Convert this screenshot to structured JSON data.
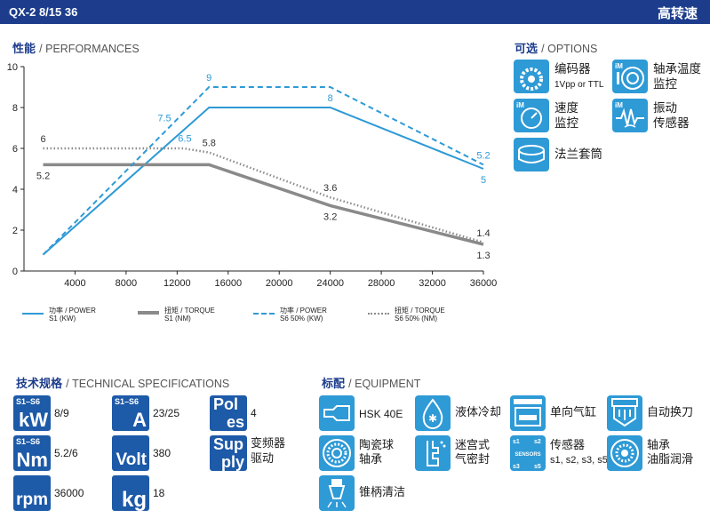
{
  "header": {
    "model": "QX-2 8/15 36",
    "title": "高转速"
  },
  "performances": {
    "title_cn": "性能",
    "title_en": "/ PERFORMANCES"
  },
  "options": {
    "title_cn": "可选",
    "title_en": "/ OPTIONS",
    "items": [
      {
        "icon": "encoder-icon",
        "label1": "编码器",
        "label2": "1Vpp or TTL"
      },
      {
        "icon": "bearing-temperature-icon",
        "label1": "轴承温度",
        "label2": "监控"
      },
      {
        "icon": "speed-monitor-icon",
        "label1": "速度",
        "label2": "监控"
      },
      {
        "icon": "vibration-sensor-icon",
        "label1": "振动",
        "label2": "传感器"
      },
      {
        "icon": "flange-sleeve-icon",
        "label1": "法兰套筒",
        "label2": ""
      }
    ]
  },
  "chart_data": {
    "type": "line",
    "title": "",
    "xlabel": "",
    "ylabel": "",
    "xlim": [
      0,
      36000
    ],
    "ylim": [
      0,
      10
    ],
    "x_ticks": [
      "4000",
      "8000",
      "12000",
      "16000",
      "20000",
      "24000",
      "28000",
      "32000",
      "36000"
    ],
    "y_ticks": [
      "0",
      "2",
      "4",
      "6",
      "8",
      "10"
    ],
    "grid": false,
    "series": [
      {
        "name": "功率 / POWER S1 (KW)",
        "color": "#2e9ad6",
        "dash": "solid",
        "points": [
          [
            1500,
            0.8
          ],
          [
            14500,
            8
          ],
          [
            24000,
            8
          ],
          [
            36000,
            5
          ]
        ],
        "labels": [
          {
            "i": 3,
            "text": "5",
            "pos": "below"
          },
          {
            "i": 2,
            "text": "8",
            "pos": "above"
          }
        ]
      },
      {
        "name": "扭矩 / TORQUE S1 (NM)",
        "color": "#8a8a8a",
        "dash": "solid",
        "points": [
          [
            1500,
            5.2
          ],
          [
            14500,
            5.2
          ],
          [
            24000,
            3.2
          ],
          [
            36000,
            1.3
          ]
        ],
        "labels": [
          {
            "i": 0,
            "text": "5.2",
            "pos": "below"
          },
          {
            "i": 2,
            "text": "3.2",
            "pos": "below"
          },
          {
            "i": 3,
            "text": "1.3",
            "pos": "below"
          }
        ]
      },
      {
        "name": "功率 / POWER S6 50% (KW)",
        "color": "#2e9ad6",
        "dash": "dashed",
        "points": [
          [
            1500,
            0.8
          ],
          [
            14500,
            9
          ],
          [
            24000,
            9
          ],
          [
            36000,
            5.2
          ]
        ],
        "labels": [
          {
            "i": 1,
            "text": "9",
            "pos": "above"
          },
          {
            "i": 3,
            "text": "5.2",
            "pos": "above"
          }
        ]
      },
      {
        "name": "扭矩 / TORQUE S6 50% (NM)",
        "color": "#8a8a8a",
        "dash": "dotted",
        "points": [
          [
            1500,
            6
          ],
          [
            12500,
            6
          ],
          [
            14500,
            5.8
          ],
          [
            24000,
            3.6
          ],
          [
            36000,
            1.4
          ]
        ],
        "labels": [
          {
            "i": 0,
            "text": "6",
            "pos": "above"
          },
          {
            "i": 2,
            "text": "5.8",
            "pos": "above"
          },
          {
            "i": 3,
            "text": "3.6",
            "pos": "above"
          },
          {
            "i": 4,
            "text": "1.4",
            "pos": "above"
          }
        ]
      }
    ],
    "extra_labels": [
      {
        "x": 11000,
        "y": 7.5,
        "text": "7.5",
        "color": "#2e9ad6"
      },
      {
        "x": 12600,
        "y": 6.5,
        "text": "6.5",
        "color": "#2e9ad6"
      }
    ]
  },
  "legend": [
    {
      "line1": "功率 / POWER",
      "line2": "S1 (KW)"
    },
    {
      "line1": "扭矩 / TORQUE",
      "line2": "S1 (NM)"
    },
    {
      "line1": "功率 / POWER",
      "line2": "S6 50% (KW)"
    },
    {
      "line1": "扭矩 / TORQUE",
      "line2": "S6 50% (NM)"
    }
  ],
  "specs": {
    "title_cn": "技术规格",
    "title_en": "/ TECHNICAL SPECIFICATIONS",
    "items": [
      {
        "tag": "S1–S6",
        "unit": "kW",
        "value": "8/9"
      },
      {
        "tag": "S1–S6",
        "unit": "A",
        "value": "23/25"
      },
      {
        "unit1": "Pol",
        "unit2": "es",
        "value": "4"
      },
      {
        "tag": "S1–S6",
        "unit": "Nm",
        "value": "5.2/6"
      },
      {
        "unit": "Volt",
        "value": "380"
      },
      {
        "unit1": "Sup",
        "unit2": "ply",
        "value1": "变频器",
        "value2": "驱动"
      },
      {
        "unit": "rpm",
        "value": "36000"
      },
      {
        "unit": "kg",
        "value": "18"
      }
    ]
  },
  "equipment": {
    "title_cn": "标配",
    "title_en": "/ EQUIPMENT",
    "items": [
      {
        "icon": "hsk-holder-icon",
        "label1": "HSK 40E",
        "label2": ""
      },
      {
        "icon": "liquid-cooling-icon",
        "label1": "液体冷却",
        "label2": ""
      },
      {
        "icon": "single-cylinder-icon",
        "label1": "单向气缸",
        "label2": ""
      },
      {
        "icon": "auto-tool-change-icon",
        "label1": "自动换刀",
        "label2": ""
      },
      {
        "icon": "ceramic-bearing-icon",
        "label1": "陶瓷球",
        "label2": "轴承"
      },
      {
        "icon": "labyrinth-seal-icon",
        "label1": "迷宫式",
        "label2": "气密封"
      },
      {
        "icon": "sensors-icon",
        "label1": "传感器",
        "label2": "s1, s2, s3, s5",
        "sensor_text": "SENSORS",
        "sensor_tags": [
          "s1",
          "s2",
          "s3",
          "s5"
        ]
      },
      {
        "icon": "grease-lubrication-icon",
        "label1": "轴承",
        "label2": "油脂润滑"
      },
      {
        "icon": "cone-cleaning-icon",
        "label1": "锥柄清洁",
        "label2": ""
      }
    ]
  }
}
